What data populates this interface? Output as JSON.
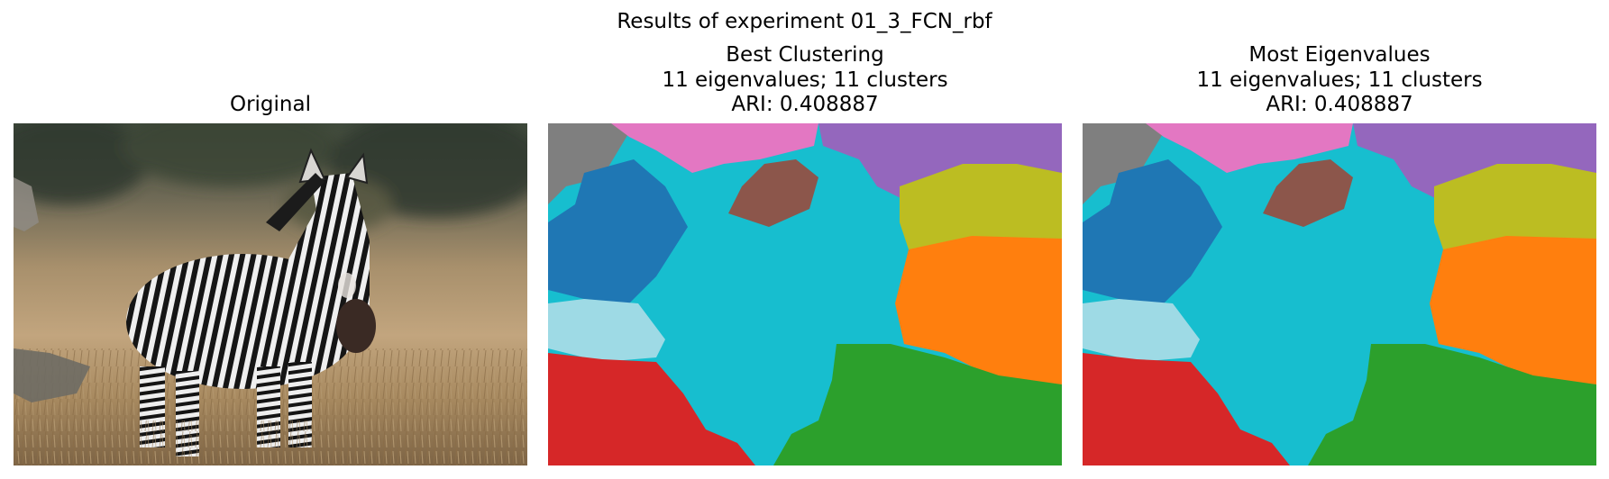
{
  "figure": {
    "suptitle": "Results of experiment 01_3_FCN_rbf"
  },
  "panels": [
    {
      "title": "Original",
      "content": "photo-zebra-in-grass"
    },
    {
      "title_lines": [
        "Best Clustering",
        "11 eigenvalues; 11 clusters",
        "ARI: 0.408887"
      ],
      "content": "cluster-map"
    },
    {
      "title_lines": [
        "Most Eigenvalues",
        "11 eigenvalues; 11 clusters",
        "ARI: 0.408887"
      ],
      "content": "cluster-map"
    }
  ],
  "cluster_colors": {
    "cyan": "#17becf",
    "blue": "#1f77b4",
    "pink": "#e377c2",
    "purple": "#9467bd",
    "brown": "#8c564b",
    "gray": "#7f7f7f",
    "olive": "#bcbd22",
    "orange": "#ff7f0e",
    "light_cyan": "#9edae5",
    "red": "#d62728",
    "green": "#2ca02c"
  }
}
